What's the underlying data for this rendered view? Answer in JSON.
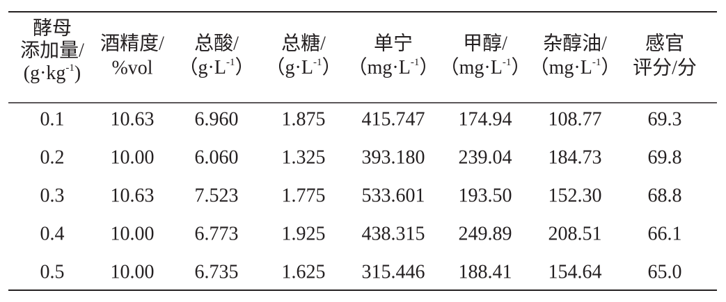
{
  "table": {
    "header": [
      [
        "酵母",
        "添加量/",
        {
          "base": "(g·kg",
          "sup": "-1",
          "end": ")"
        }
      ],
      [
        "酒精度/",
        "%vol"
      ],
      [
        "总酸/",
        {
          "base": "（g·L",
          "sup": "-1",
          "end": "）"
        }
      ],
      [
        "总糖/",
        {
          "base": "（g·L",
          "sup": "-1",
          "end": "）"
        }
      ],
      [
        "单宁",
        {
          "base": "（mg·L",
          "sup": "-1",
          "end": "）"
        }
      ],
      [
        "甲醇/",
        {
          "base": "（mg·L",
          "sup": "-1",
          "end": "）"
        }
      ],
      [
        "杂醇油/",
        {
          "base": "（mg·L",
          "sup": "-1",
          "end": "）"
        }
      ],
      [
        "感官",
        "评分/分"
      ]
    ],
    "rows": [
      [
        "0.1",
        "10.63",
        "6.960",
        "1.875",
        "415.747",
        "174.94",
        "108.77",
        "69.3"
      ],
      [
        "0.2",
        "10.00",
        "6.060",
        "1.325",
        "393.180",
        "239.04",
        "184.73",
        "69.8"
      ],
      [
        "0.3",
        "10.63",
        "7.523",
        "1.775",
        "533.601",
        "193.50",
        "152.30",
        "68.8"
      ],
      [
        "0.4",
        "10.00",
        "6.773",
        "1.925",
        "438.315",
        "249.89",
        "208.51",
        "66.1"
      ],
      [
        "0.5",
        "10.00",
        "6.735",
        "1.625",
        "315.446",
        "188.41",
        "154.64",
        "65.0"
      ]
    ]
  }
}
